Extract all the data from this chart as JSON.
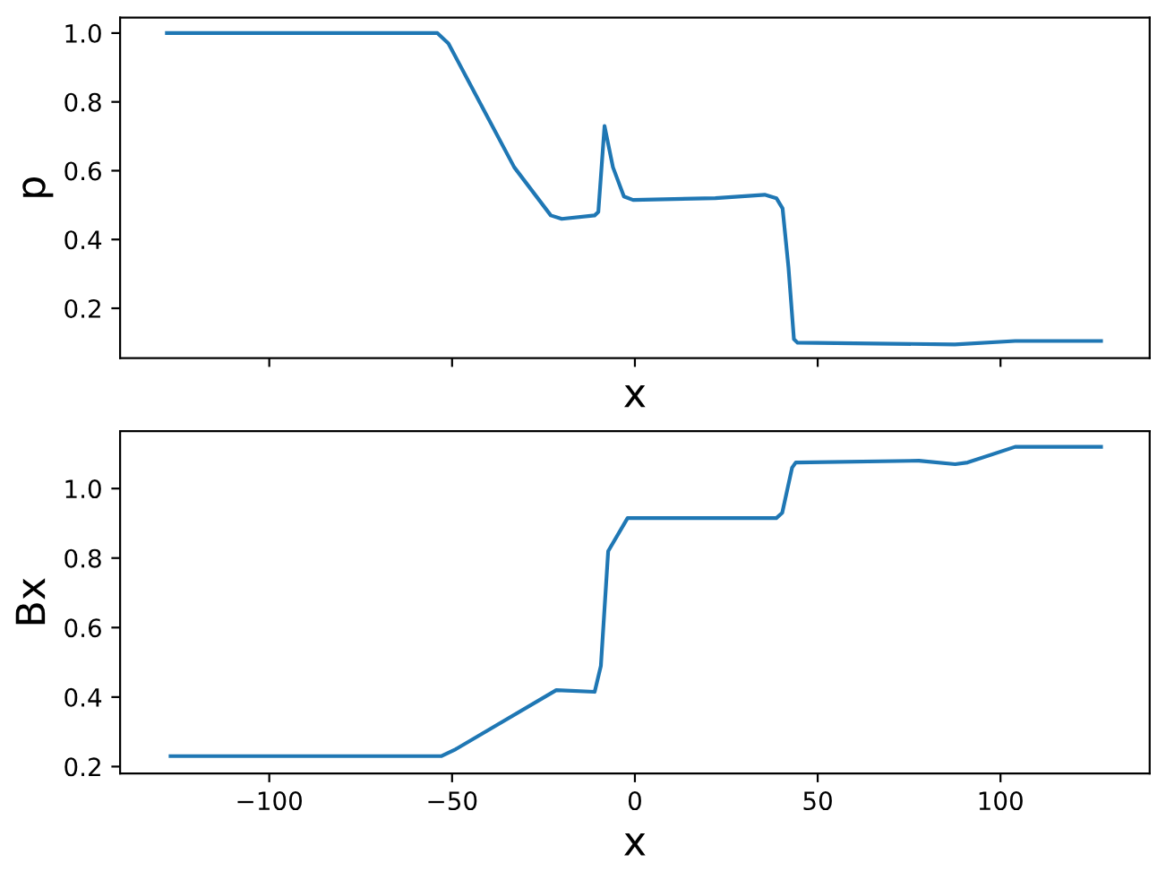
{
  "chart_data": [
    {
      "type": "line",
      "xlabel": "x",
      "ylabel": "p",
      "tick_labels": "y",
      "grid": false,
      "xlim": [
        -140.8,
        140.8
      ],
      "ylim": [
        0.055,
        1.045
      ],
      "xticks": [
        {
          "value": -100,
          "label": null
        },
        {
          "value": -50,
          "label": null
        },
        {
          "value": 0,
          "label": null
        },
        {
          "value": 50,
          "label": null
        },
        {
          "value": 100,
          "label": null
        }
      ],
      "yticks": [
        {
          "value": 0.2,
          "label": "0.2"
        },
        {
          "value": 0.4,
          "label": "0.4"
        },
        {
          "value": 0.6,
          "label": "0.6"
        },
        {
          "value": 0.8,
          "label": "0.8"
        },
        {
          "value": 1.0,
          "label": "1.0"
        }
      ],
      "series": [
        {
          "color": "#1f77b4",
          "x": [
            -128,
            -54,
            -51,
            -41,
            -33,
            -23,
            -20,
            -11,
            -10,
            -8.3,
            -6,
            -3,
            -0.5,
            22,
            35.5,
            38.7,
            40.4,
            42,
            43.5,
            44.5,
            87.5,
            104,
            127.5
          ],
          "values": [
            1.0,
            1.0,
            0.97,
            0.77,
            0.61,
            0.47,
            0.46,
            0.47,
            0.48,
            0.73,
            0.61,
            0.525,
            0.515,
            0.52,
            0.53,
            0.52,
            0.49,
            0.32,
            0.11,
            0.1,
            0.095,
            0.105,
            0.105
          ]
        }
      ]
    },
    {
      "type": "line",
      "xlabel": "x",
      "ylabel": "Bx",
      "grid": false,
      "xlim": [
        -140.8,
        140.8
      ],
      "ylim": [
        0.18,
        1.165
      ],
      "xticks": [
        {
          "value": -100,
          "label": "−100"
        },
        {
          "value": -50,
          "label": "−50"
        },
        {
          "value": 0,
          "label": "0"
        },
        {
          "value": 50,
          "label": "50"
        },
        {
          "value": 100,
          "label": "100"
        }
      ],
      "yticks": [
        {
          "value": 0.2,
          "label": "0.2"
        },
        {
          "value": 0.4,
          "label": "0.4"
        },
        {
          "value": 0.6,
          "label": "0.6"
        },
        {
          "value": 0.8,
          "label": "0.8"
        },
        {
          "value": 1.0,
          "label": "1.0"
        }
      ],
      "series": [
        {
          "color": "#1f77b4",
          "x": [
            -127,
            -53,
            -49,
            -21.5,
            -11,
            -9.3,
            -7.3,
            -2,
            38.7,
            40.3,
            43,
            44,
            77.7,
            87.6,
            91,
            104,
            127.5
          ],
          "values": [
            0.23,
            0.23,
            0.25,
            0.42,
            0.415,
            0.49,
            0.82,
            0.915,
            0.915,
            0.93,
            1.06,
            1.075,
            1.08,
            1.07,
            1.075,
            1.12,
            1.12
          ]
        }
      ]
    }
  ]
}
